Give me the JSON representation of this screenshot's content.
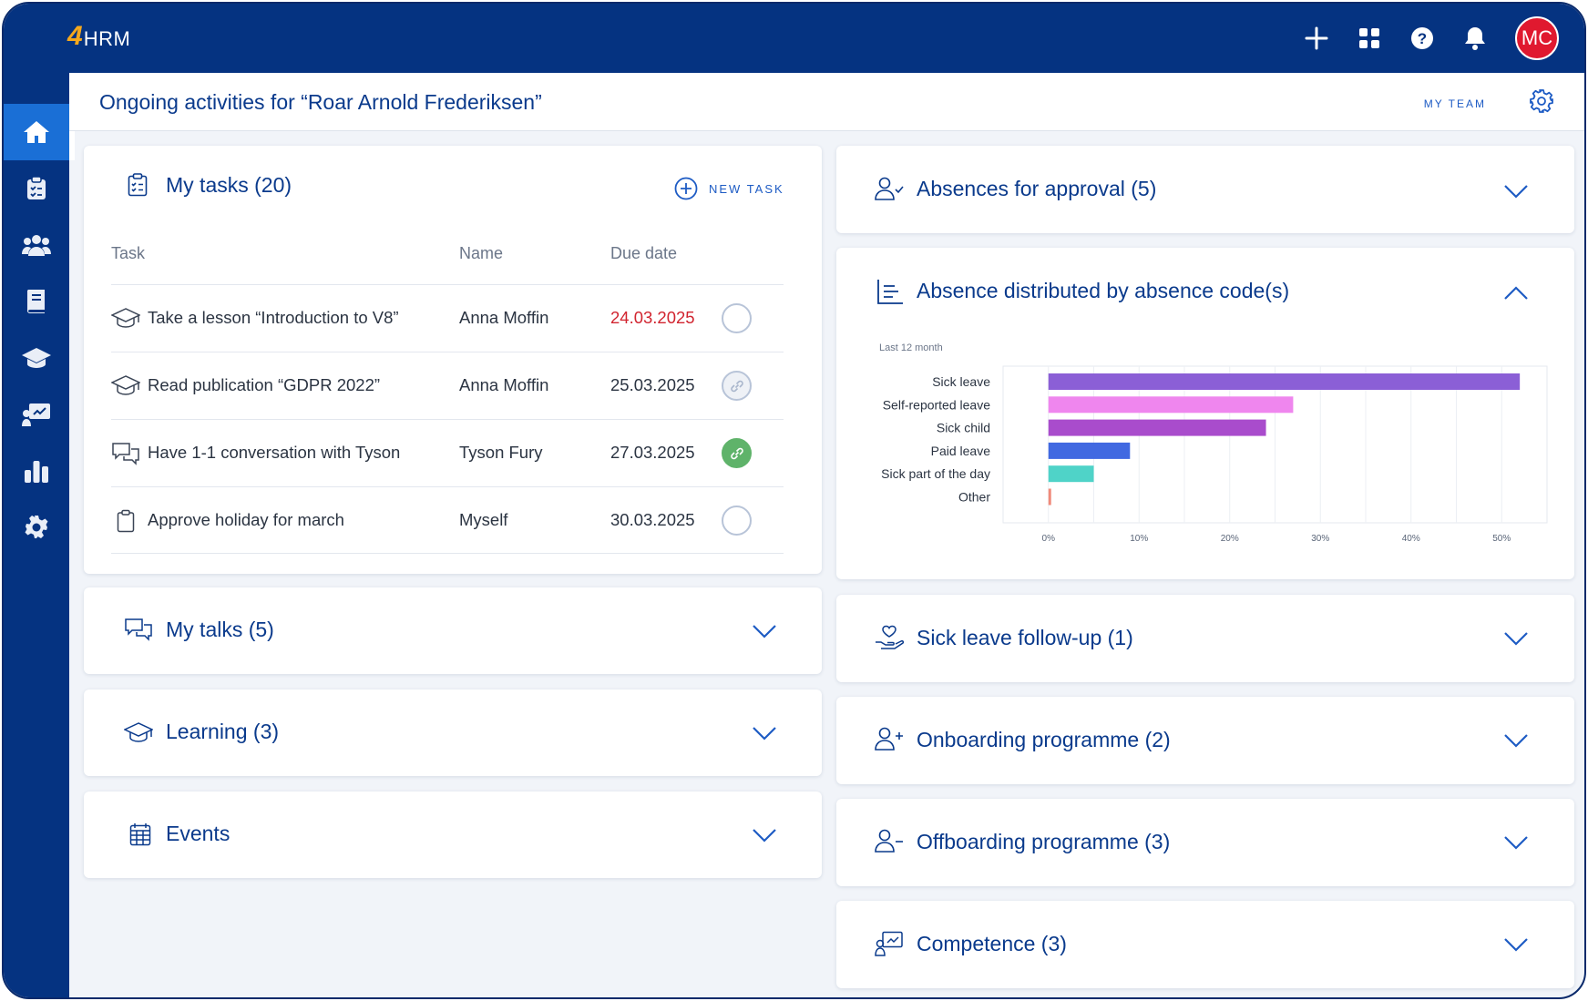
{
  "app": {
    "logo_number": "4",
    "logo_text": "HRM",
    "user_initials": "MC"
  },
  "header": {
    "title": "Ongoing activities for  “Roar Arnold Frederiksen”",
    "my_team": "MY TEAM"
  },
  "topbar_icons": [
    "plus-icon",
    "apps-grid-icon",
    "help-icon",
    "bell-icon"
  ],
  "sidebar": {
    "items": [
      {
        "icon": "home-icon",
        "active": true
      },
      {
        "icon": "clipboard-icon"
      },
      {
        "icon": "people-icon"
      },
      {
        "icon": "book-icon"
      },
      {
        "icon": "graduation-cap-icon"
      },
      {
        "icon": "presentation-icon"
      },
      {
        "icon": "bar-chart-icon"
      },
      {
        "icon": "gear-icon"
      }
    ]
  },
  "tasks": {
    "title": "My tasks (20)",
    "new_task": "NEW TASK",
    "columns": {
      "task": "Task",
      "name": "Name",
      "due": "Due date"
    },
    "rows": [
      {
        "icon": "graduation-cap-icon",
        "task": "Take a lesson “Introduction to V8”",
        "name": "Anna Moffin",
        "due": "24.03.2025",
        "overdue": true,
        "status": "empty"
      },
      {
        "icon": "graduation-cap-icon",
        "task": "Read publication “GDPR 2022”",
        "name": "Anna Moffin",
        "due": "25.03.2025",
        "overdue": false,
        "status": "linked-grey"
      },
      {
        "icon": "chat-icon",
        "task": "Have 1-1 conversation with Tyson",
        "name": "Tyson Fury",
        "due": "27.03.2025",
        "overdue": false,
        "status": "linked-green"
      },
      {
        "icon": "clipboard-icon",
        "task": "Approve holiday for march",
        "name": "Myself",
        "due": "30.03.2025",
        "overdue": false,
        "status": "empty"
      }
    ]
  },
  "left_panels": {
    "talks": "My talks (5)",
    "learning": "Learning (3)",
    "events": "Events"
  },
  "right_panels": {
    "absences": "Absences for approval (5)",
    "distribution": "Absence distributed by absence code(s)",
    "sick_followup": "Sick leave follow-up (1)",
    "onboarding": "Onboarding programme (2)",
    "offboarding": "Offboarding programme (3)",
    "competence": "Competence (3)"
  },
  "chart_data": {
    "type": "bar",
    "orientation": "horizontal",
    "subtitle": "Last 12 month",
    "categories": [
      "Sick leave",
      "Self-reported leave",
      "Sick child",
      "Paid leave",
      "Sick part of the day",
      "Other"
    ],
    "values": [
      52,
      27,
      24,
      9,
      5,
      0.3
    ],
    "colors": [
      "#8b5fd6",
      "#ef86ee",
      "#a94ccc",
      "#4169e1",
      "#4fd3c8",
      "#f08a7a"
    ],
    "xlim": [
      -5,
      55
    ],
    "xticks": [
      0,
      10,
      20,
      30,
      40,
      50
    ],
    "xtick_labels": [
      "0%",
      "10%",
      "20%",
      "30%",
      "40%",
      "50%"
    ],
    "grid": true
  }
}
